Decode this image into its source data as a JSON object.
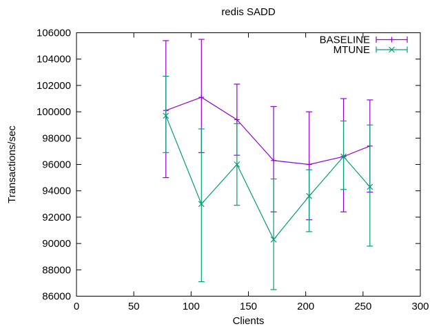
{
  "window": {
    "background": "#ffffff",
    "foreground": "#000000"
  },
  "chart_data": {
    "type": "line",
    "title": "redis SADD",
    "xlabel": "Clients",
    "ylabel": "Transactions/sec",
    "xlim": [
      0,
      300
    ],
    "ylim": [
      86000,
      106000
    ],
    "x_ticks": [
      0,
      50,
      100,
      150,
      200,
      250,
      300
    ],
    "y_ticks": [
      86000,
      88000,
      90000,
      92000,
      94000,
      96000,
      98000,
      100000,
      102000,
      104000,
      106000
    ],
    "grid": false,
    "error_bars": true,
    "legend": {
      "position": "top-right-inside",
      "entries": [
        "BASELINE",
        "MTUNE"
      ]
    },
    "x": [
      78,
      109,
      140,
      172,
      203,
      233,
      256
    ],
    "series": [
      {
        "name": "BASELINE",
        "color": "#9400d3",
        "marker": "plus",
        "y": [
          100100,
          101100,
          99400,
          96300,
          96000,
          96600,
          97400
        ],
        "y_low": [
          95000,
          96900,
          96700,
          92400,
          91800,
          92400,
          93900
        ],
        "y_high": [
          105400,
          105500,
          102100,
          100400,
          100000,
          101000,
          100900
        ]
      },
      {
        "name": "MTUNE",
        "color": "#009e73",
        "marker": "x",
        "y": [
          99700,
          93000,
          96000,
          90300,
          93600,
          96600,
          94300
        ],
        "y_low": [
          96900,
          87100,
          92900,
          86500,
          90900,
          94100,
          89800
        ],
        "y_high": [
          102700,
          98700,
          99100,
          94900,
          95600,
          99300,
          99000
        ]
      }
    ]
  }
}
